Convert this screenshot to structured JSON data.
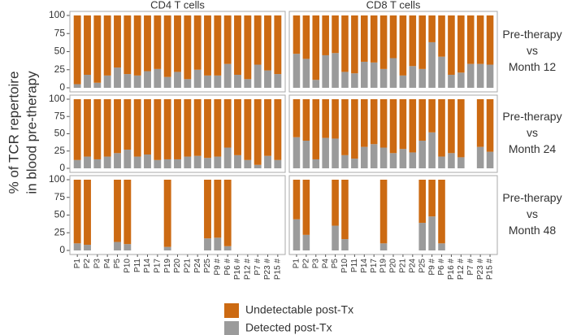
{
  "chart_data": {
    "type": "bar",
    "stacked": true,
    "y_label": [
      "% of TCR repertoire",
      "in blood pre-therapy"
    ],
    "columns": [
      "CD4 T cells",
      "CD8 T cells"
    ],
    "rows": [
      [
        "Pre-therapy",
        "vs",
        "Month 12"
      ],
      [
        "Pre-therapy",
        "vs",
        "Month 24"
      ],
      [
        "Pre-therapy",
        "vs",
        "Month 48"
      ]
    ],
    "categories": [
      "P1",
      "P2",
      "P3",
      "P4",
      "P5",
      "P10",
      "P11",
      "P14",
      "P17",
      "P19",
      "P20",
      "P21",
      "P24",
      "P25",
      "P9 #",
      "P6 #",
      "P16 #",
      "P12 #",
      "P7 #",
      "P23 #",
      "P15 #"
    ],
    "ylim": [
      0,
      100
    ],
    "yticks": [
      0,
      25,
      50,
      75,
      100
    ],
    "series": [
      {
        "name": "Undetectable post-Tx",
        "color": "#cc6a12"
      },
      {
        "name": "Detected post-Tx",
        "color": "#9b9b9b"
      }
    ],
    "panels": [
      [
        {
          "values": [
            [
              95,
              82,
              93,
              83,
              72,
              81,
              83,
              77,
              74,
              85,
              78,
              88,
              75,
              83,
              83,
              67,
              82,
              88,
              68,
              76,
              81
            ],
            [
              5,
              18,
              7,
              17,
              28,
              19,
              17,
              23,
              26,
              15,
              22,
              12,
              25,
              17,
              17,
              33,
              18,
              12,
              32,
              24,
              19
            ]
          ]
        },
        {
          "values": [
            [
              53,
              60,
              89,
              55,
              52,
              78,
              80,
              64,
              65,
              74,
              59,
              83,
              70,
              74,
              37,
              57,
              82,
              79,
              67,
              67,
              68
            ],
            [
              47,
              40,
              11,
              45,
              48,
              22,
              20,
              36,
              35,
              26,
              41,
              17,
              30,
              26,
              63,
              43,
              18,
              21,
              33,
              33,
              32
            ]
          ]
        }
      ],
      [
        {
          "values": [
            [
              88,
              83,
              87,
              83,
              78,
              73,
              83,
              80,
              88,
              87,
              87,
              83,
              82,
              85,
              83,
              70,
              81,
              88,
              95,
              82,
              88
            ],
            [
              12,
              17,
              13,
              17,
              22,
              27,
              17,
              20,
              12,
              13,
              13,
              17,
              18,
              15,
              17,
              30,
              19,
              12,
              5,
              18,
              12
            ]
          ]
        },
        {
          "values": [
            [
              55,
              60,
              87,
              56,
              57,
              81,
              86,
              69,
              65,
              70,
              78,
              72,
              77,
              60,
              48,
              83,
              78,
              84,
              null,
              69,
              76
            ],
            [
              45,
              40,
              13,
              44,
              43,
              19,
              14,
              31,
              35,
              30,
              22,
              28,
              23,
              40,
              52,
              17,
              22,
              16,
              null,
              31,
              24
            ]
          ]
        }
      ],
      [
        {
          "values": [
            [
              90,
              92,
              null,
              null,
              88,
              91,
              null,
              null,
              null,
              95,
              null,
              null,
              null,
              83,
              82,
              94,
              null,
              null,
              null,
              null,
              null
            ],
            [
              10,
              8,
              null,
              null,
              12,
              9,
              null,
              null,
              null,
              5,
              null,
              null,
              null,
              17,
              18,
              6,
              null,
              null,
              null,
              null,
              null
            ]
          ]
        },
        {
          "values": [
            [
              56,
              78,
              null,
              null,
              65,
              84,
              null,
              null,
              null,
              90,
              null,
              null,
              null,
              61,
              52,
              90,
              null,
              null,
              null,
              null,
              null
            ],
            [
              44,
              22,
              null,
              null,
              35,
              16,
              null,
              null,
              null,
              10,
              null,
              null,
              null,
              39,
              48,
              10,
              null,
              null,
              null,
              null,
              null
            ]
          ]
        }
      ]
    ]
  }
}
